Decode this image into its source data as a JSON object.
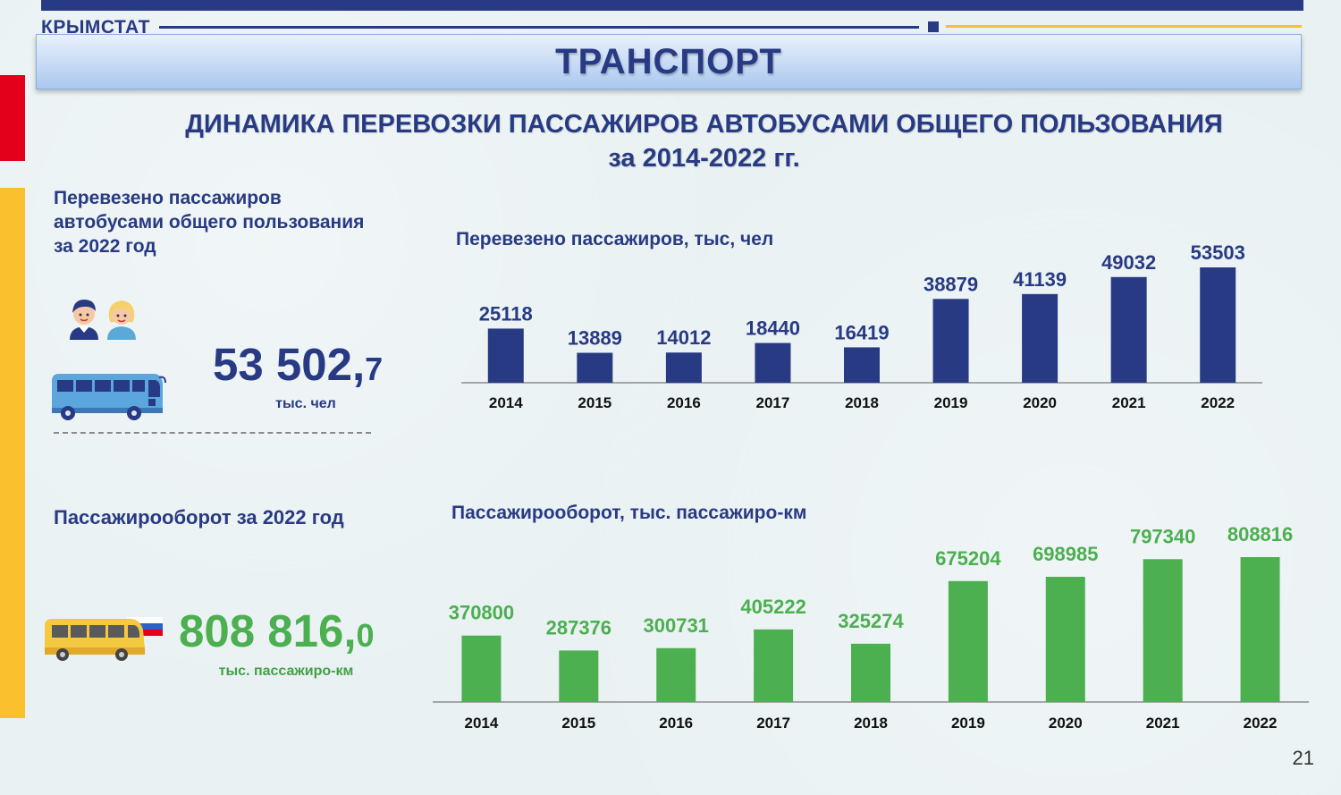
{
  "header": {
    "brand": "КРЫМСТАТ",
    "section_title": "ТРАНСПОРТ",
    "subtitle_line1": "ДИНАМИКА ПЕРЕВОЗКИ ПАССАЖИРОВ АВТОБУСАМИ ОБЩЕГО ПОЛЬЗОВАНИЯ",
    "subtitle_line2": "за 2014-2022 гг."
  },
  "passengers_block": {
    "heading_line1": "Перевезено пассажиров",
    "heading_line2": "автобусами общего пользования",
    "heading_line3": "за 2022 год",
    "value_main": "53 502,",
    "value_decimal": "7",
    "unit": "тыс. чел"
  },
  "turnover_block": {
    "heading": "Пассажирооборот за 2022 год",
    "value_main": "808 816,",
    "value_decimal": "0",
    "unit": "тыс. пассажиро-км"
  },
  "icons": {
    "people": "people-icon",
    "blue_bus": "bus-icon",
    "yellow_bus": "bus-icon"
  },
  "colors": {
    "navy": "#283a83",
    "green": "#4caf50",
    "gold": "#f2c039",
    "red": "#e3001b",
    "yellow": "#fbc02d"
  },
  "chart_data": [
    {
      "type": "bar",
      "title": "Перевезено пассажиров, тыс, чел",
      "categories": [
        "2014",
        "2015",
        "2016",
        "2017",
        "2018",
        "2019",
        "2020",
        "2021",
        "2022"
      ],
      "values": [
        25118,
        13889,
        14012,
        18440,
        16419,
        38879,
        41139,
        49032,
        53503
      ],
      "color": "#283a83",
      "grid": false,
      "legend": "none"
    },
    {
      "type": "bar",
      "title": "Пассажирооборот, тыс. пассажиро-км",
      "categories": [
        "2014",
        "2015",
        "2016",
        "2017",
        "2018",
        "2019",
        "2020",
        "2021",
        "2022"
      ],
      "values": [
        370800,
        287376,
        300731,
        405222,
        325274,
        675204,
        698985,
        797340,
        808816
      ],
      "color": "#4caf50",
      "grid": false,
      "legend": "none"
    }
  ],
  "footer": {
    "page_number": "21"
  }
}
